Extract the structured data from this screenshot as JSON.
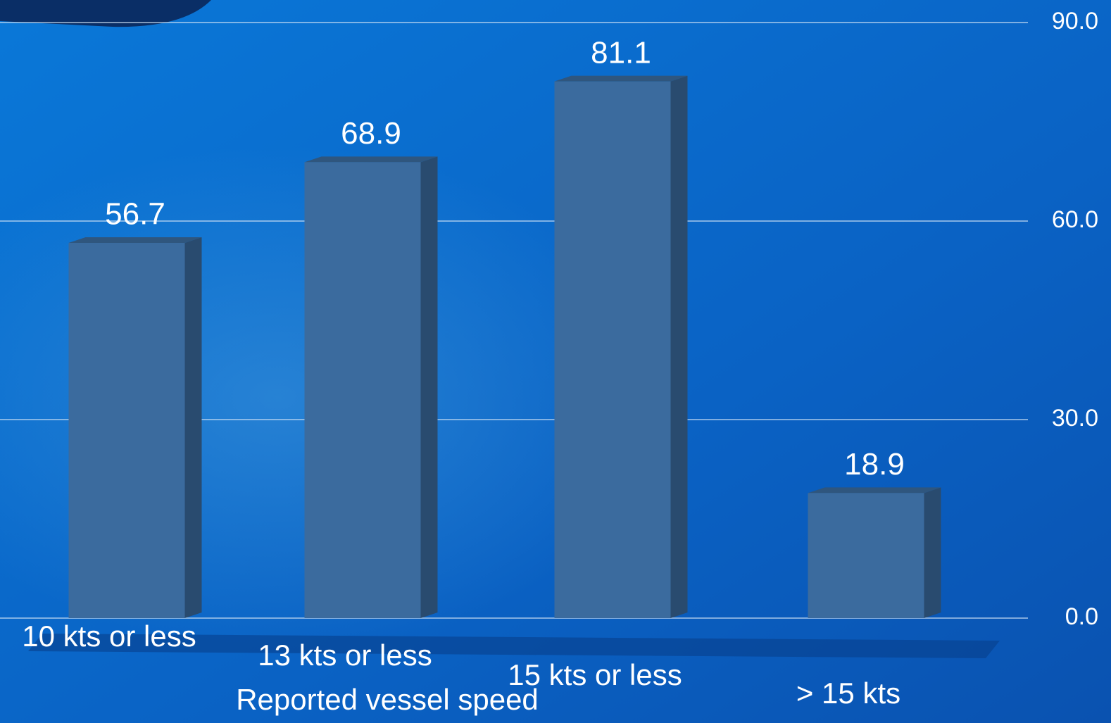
{
  "chart_data": {
    "type": "bar",
    "x_label": "Reported vessel speed",
    "categories": [
      "10 kts or less",
      "13 kts or less",
      "15 kts or less",
      "> 15 kts"
    ],
    "values": [
      56.7,
      68.9,
      81.1,
      18.9
    ],
    "color": "#3b6b9e",
    "ylim": [
      0,
      90
    ],
    "yticks": [
      {
        "value": 0,
        "label": "0.0"
      },
      {
        "value": 30,
        "label": "30.0"
      },
      {
        "value": 60,
        "label": "60.0"
      },
      {
        "value": 90,
        "label": "90.0"
      }
    ],
    "grid": true
  }
}
